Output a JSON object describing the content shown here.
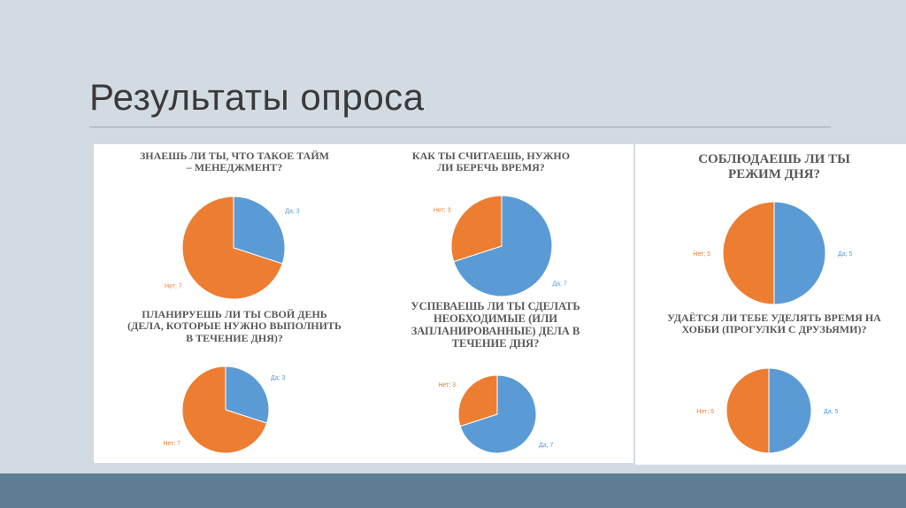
{
  "slide": {
    "title": "Результаты опроса"
  },
  "colors": {
    "yes": "#5b9bd5",
    "no": "#ed7d31",
    "footer": "#5f7d93",
    "background": "#d3dbe2"
  },
  "chart_data": [
    {
      "type": "pie",
      "title": "Знаешь ли ты, что такое тайм – менеджмент?",
      "slices": [
        {
          "label": "Да",
          "value": 3,
          "text": "Да; 3"
        },
        {
          "label": "Нет",
          "value": 7,
          "text": "Нет; 7"
        }
      ]
    },
    {
      "type": "pie",
      "title": "Как ты считаешь, нужно ли беречь время?",
      "slices": [
        {
          "label": "Да",
          "value": 7,
          "text": "Да; 7"
        },
        {
          "label": "Нет",
          "value": 3,
          "text": "Нет; 3"
        }
      ]
    },
    {
      "type": "pie",
      "title": "Соблюдаешь ли ты режим дня?",
      "slices": [
        {
          "label": "Да",
          "value": 5,
          "text": "Да; 5"
        },
        {
          "label": "Нет",
          "value": 5,
          "text": "Нет; 5"
        }
      ]
    },
    {
      "type": "pie",
      "title": "Планируешь ли ты свой день (дела, которые нужно выполнить в течение дня)?",
      "slices": [
        {
          "label": "Да",
          "value": 3,
          "text": "Да; 3"
        },
        {
          "label": "Нет",
          "value": 7,
          "text": "Нет; 7"
        }
      ]
    },
    {
      "type": "pie",
      "title": "Успеваешь ли ты сделать необходимые (или запланированные) дела в течение дня?",
      "slices": [
        {
          "label": "Да",
          "value": 7,
          "text": "Да; 7"
        },
        {
          "label": "Нет",
          "value": 3,
          "text": "Нет; 3"
        }
      ]
    },
    {
      "type": "pie",
      "title": "Удаётся ли тебе уделять время на хобби (прогулки с друзьями)?",
      "slices": [
        {
          "label": "Да",
          "value": 5,
          "text": "Да; 5"
        },
        {
          "label": "Нет",
          "value": 5,
          "text": "Нет; 5"
        }
      ]
    }
  ]
}
